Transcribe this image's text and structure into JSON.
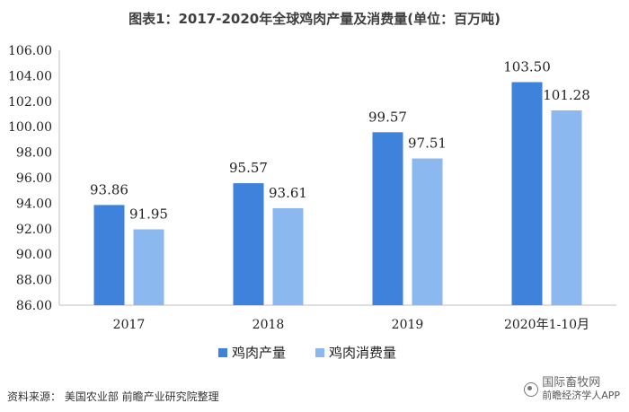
{
  "title": "图表1：2017-2020年全球鸡肉产量及消费量(单位：百万吨)",
  "source": "资料来源：  美国农业部 前瞻产业研究院整理",
  "watermark": {
    "line1": "国际畜牧网",
    "line2": "前瞻经济学人APP"
  },
  "colors": {
    "production": "#3f82dc",
    "consumption": "#8ab8ef",
    "axis": "#bfbfbf"
  },
  "chart_data": {
    "type": "bar",
    "categories": [
      "2017",
      "2018",
      "2019",
      "2020年1-10月"
    ],
    "series": [
      {
        "name": "鸡肉产量",
        "values": [
          93.86,
          95.57,
          99.57,
          103.5
        ],
        "labels": [
          "93.86",
          "95.57",
          "99.57",
          "103.50"
        ]
      },
      {
        "name": "鸡肉消费量",
        "values": [
          91.95,
          93.61,
          97.51,
          101.28
        ],
        "labels": [
          "91.95",
          "93.61",
          "97.51",
          "101.28"
        ]
      }
    ],
    "ylim": [
      86,
      106
    ],
    "yticks": [
      "86.00",
      "88.00",
      "90.00",
      "92.00",
      "94.00",
      "96.00",
      "98.00",
      "100.00",
      "102.00",
      "104.00",
      "106.00"
    ],
    "xlabel": "",
    "ylabel": "",
    "grid": false,
    "legend_position": "bottom"
  }
}
